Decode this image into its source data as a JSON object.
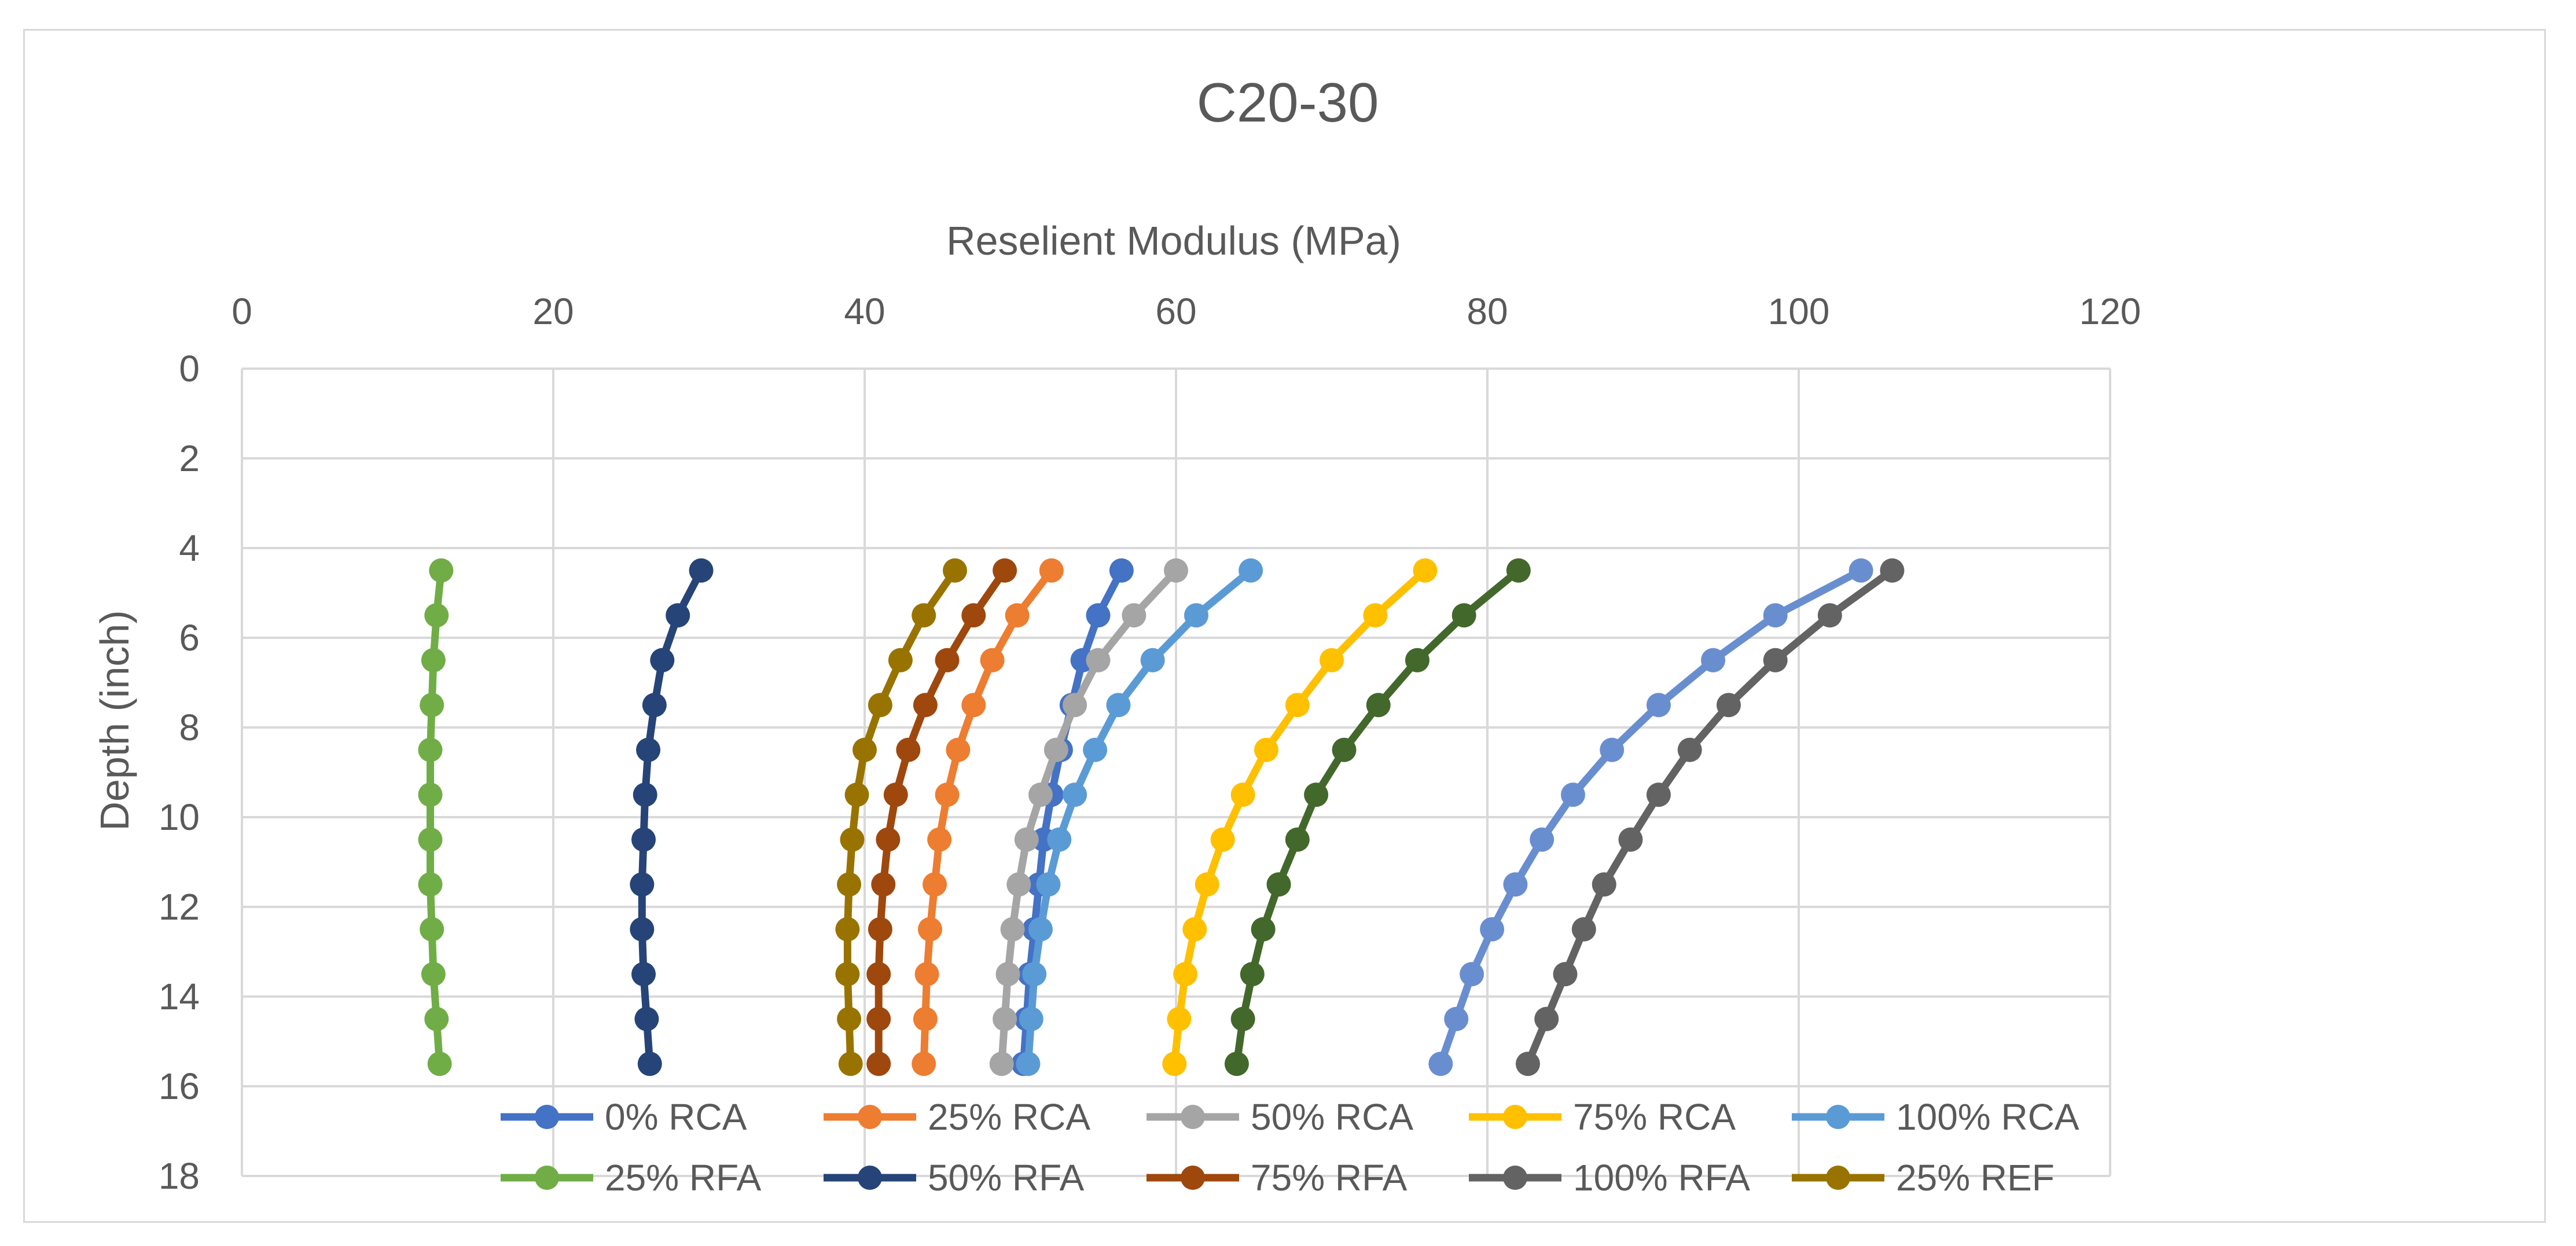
{
  "chart_data": {
    "type": "line",
    "title": "C20-30",
    "xlabel": "Reselient Modulus (MPa)",
    "ylabel": "Depth (inch)",
    "xlim": [
      0,
      120
    ],
    "ylim": [
      0,
      18
    ],
    "y_inverted": true,
    "x_ticks": [
      0,
      20,
      40,
      60,
      80,
      100,
      120
    ],
    "y_ticks": [
      0,
      2,
      4,
      6,
      8,
      10,
      12,
      14,
      16,
      18
    ],
    "x_axis_position": "top",
    "grid": true,
    "legend": "bottom",
    "depths": [
      4.5,
      5.5,
      6.5,
      7.5,
      8.5,
      9.5,
      10.5,
      11.5,
      12.5,
      13.5,
      14.5,
      15.5
    ],
    "series": [
      {
        "name": "0% RCA",
        "color": "#4472C4",
        "values": [
          56.5,
          55.0,
          54.0,
          53.3,
          52.6,
          52.0,
          51.5,
          51.2,
          50.9,
          50.6,
          50.4,
          50.2
        ]
      },
      {
        "name": "25% RCA",
        "color": "#ED7D31",
        "values": [
          52.0,
          49.8,
          48.2,
          47.0,
          46.0,
          45.3,
          44.8,
          44.5,
          44.2,
          44.0,
          43.9,
          43.8
        ]
      },
      {
        "name": "50% RCA",
        "color": "#A5A5A5",
        "values": [
          60.0,
          57.3,
          55.0,
          53.5,
          52.3,
          51.3,
          50.4,
          49.9,
          49.5,
          49.2,
          49.0,
          48.8
        ]
      },
      {
        "name": "75% RCA",
        "color": "#FFC000",
        "values": [
          76.0,
          72.8,
          70.0,
          67.8,
          65.8,
          64.3,
          63.0,
          62.0,
          61.2,
          60.6,
          60.2,
          59.9
        ]
      },
      {
        "name": "100% RCA",
        "color": "#5B9BD5",
        "values": [
          64.8,
          61.3,
          58.5,
          56.3,
          54.8,
          53.5,
          52.5,
          51.8,
          51.3,
          50.9,
          50.7,
          50.5
        ]
      },
      {
        "name": "25% RFA",
        "color": "#70AD47",
        "values": [
          12.8,
          12.5,
          12.3,
          12.2,
          12.1,
          12.1,
          12.1,
          12.1,
          12.2,
          12.3,
          12.5,
          12.7
        ]
      },
      {
        "name": "50% RFA",
        "color": "#264478",
        "values": [
          29.5,
          28.0,
          27.0,
          26.5,
          26.1,
          25.9,
          25.8,
          25.7,
          25.7,
          25.8,
          26.0,
          26.2
        ]
      },
      {
        "name": "75% RFA",
        "color": "#9E480E",
        "values": [
          49.0,
          47.0,
          45.3,
          43.9,
          42.8,
          42.0,
          41.5,
          41.2,
          41.0,
          40.9,
          40.9,
          40.9
        ]
      },
      {
        "name": "100% RFA",
        "color": "#636363",
        "values": [
          106.0,
          102.0,
          98.5,
          95.5,
          93.0,
          91.0,
          89.2,
          87.5,
          86.2,
          85.0,
          83.8,
          82.6
        ]
      },
      {
        "name": "25% REF",
        "color": "#997300",
        "values": [
          45.8,
          43.8,
          42.3,
          41.0,
          40.0,
          39.5,
          39.2,
          39.0,
          38.9,
          38.9,
          39.0,
          39.1
        ]
      },
      {
        "name": "",
        "color": "#43682B",
        "values": [
          82.0,
          78.5,
          75.5,
          73.0,
          70.8,
          69.0,
          67.8,
          66.6,
          65.6,
          64.9,
          64.3,
          63.9
        ]
      },
      {
        "name": "",
        "color": "#698ED0",
        "values": [
          104.0,
          98.5,
          94.5,
          91.0,
          88.0,
          85.5,
          83.5,
          81.8,
          80.3,
          79.0,
          78.0,
          77.0
        ]
      }
    ]
  }
}
